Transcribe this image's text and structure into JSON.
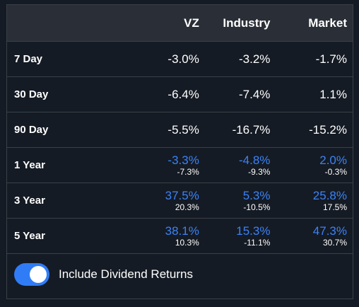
{
  "columns": [
    "VZ",
    "Industry",
    "Market"
  ],
  "rows": [
    {
      "label": "7 Day",
      "values": [
        "-3.0%",
        "-3.2%",
        "-1.7%"
      ]
    },
    {
      "label": "30 Day",
      "values": [
        "-6.4%",
        "-7.4%",
        "1.1%"
      ]
    },
    {
      "label": "90 Day",
      "values": [
        "-5.5%",
        "-16.7%",
        "-15.2%"
      ]
    },
    {
      "label": "1 Year",
      "values": [
        "-3.3%",
        "-4.8%",
        "2.0%"
      ],
      "subvalues": [
        "-7.3%",
        "-9.3%",
        "-0.3%"
      ]
    },
    {
      "label": "3 Year",
      "values": [
        "37.5%",
        "5.3%",
        "25.8%"
      ],
      "subvalues": [
        "20.3%",
        "-10.5%",
        "17.5%"
      ]
    },
    {
      "label": "5 Year",
      "values": [
        "38.1%",
        "15.3%",
        "47.3%"
      ],
      "subvalues": [
        "10.3%",
        "-11.1%",
        "30.7%"
      ]
    }
  ],
  "toggle": {
    "label": "Include Dividend Returns",
    "checked": true
  },
  "colors": {
    "accent": "#3b82f6",
    "toggle_on": "#2f7cf6",
    "background": "#151b24",
    "header_bg": "#2a2f37"
  }
}
